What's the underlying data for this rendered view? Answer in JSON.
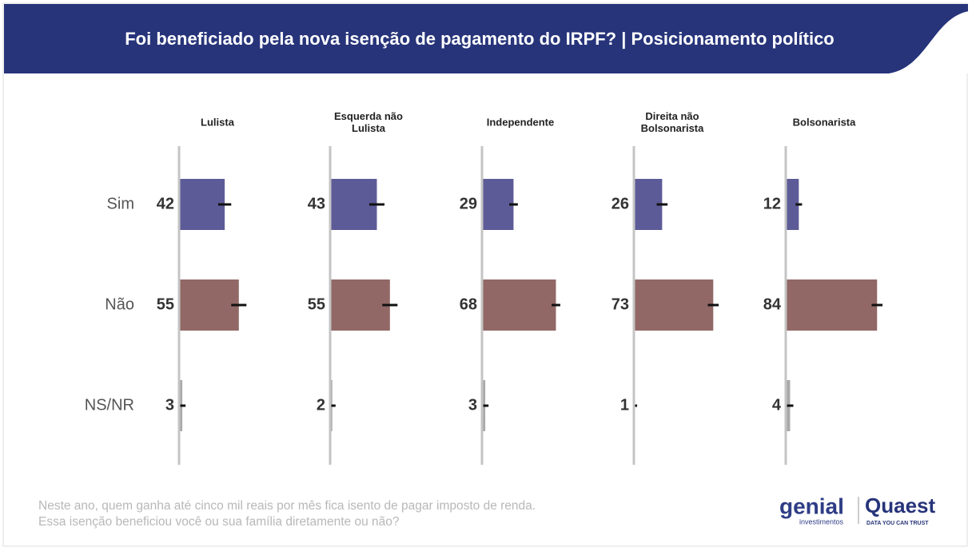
{
  "title": "Foi beneficiado pela nova isenção de pagamento do IRPF? | Posicionamento político",
  "note": [
    "Neste ano, quem ganha até cinco mil reais por mês fica isento de pagar imposto de renda.",
    "Essa isenção beneficiou você ou sua família diretamente ou não?"
  ],
  "logos": {
    "genial": "genial",
    "genial_sub": "investimentos",
    "quaest": "Quaest",
    "quaest_sub": "DATA YOU CAN TRUST"
  },
  "chart_data": {
    "type": "bar",
    "orientation": "horizontal",
    "categories": [
      "Sim",
      "Não",
      "NS/NR"
    ],
    "colors": [
      "#5d5b97",
      "#916866",
      "#a9a9a9"
    ],
    "xlim": [
      0,
      100
    ],
    "panels": [
      {
        "title": "Lulista",
        "values": [
          42,
          55,
          3
        ],
        "errors": [
          6,
          7,
          3
        ]
      },
      {
        "title": "Esquerda não Lulista",
        "values": [
          43,
          55,
          2
        ],
        "errors": [
          7,
          7,
          3
        ]
      },
      {
        "title": "Independente",
        "values": [
          29,
          68,
          3
        ],
        "errors": [
          4,
          4,
          3
        ]
      },
      {
        "title": "Direita não Bolsonarista",
        "values": [
          26,
          73,
          1
        ],
        "errors": [
          5,
          5,
          2
        ]
      },
      {
        "title": "Bolsonarista",
        "values": [
          12,
          84,
          4
        ],
        "errors": [
          3,
          5,
          3
        ]
      }
    ]
  }
}
